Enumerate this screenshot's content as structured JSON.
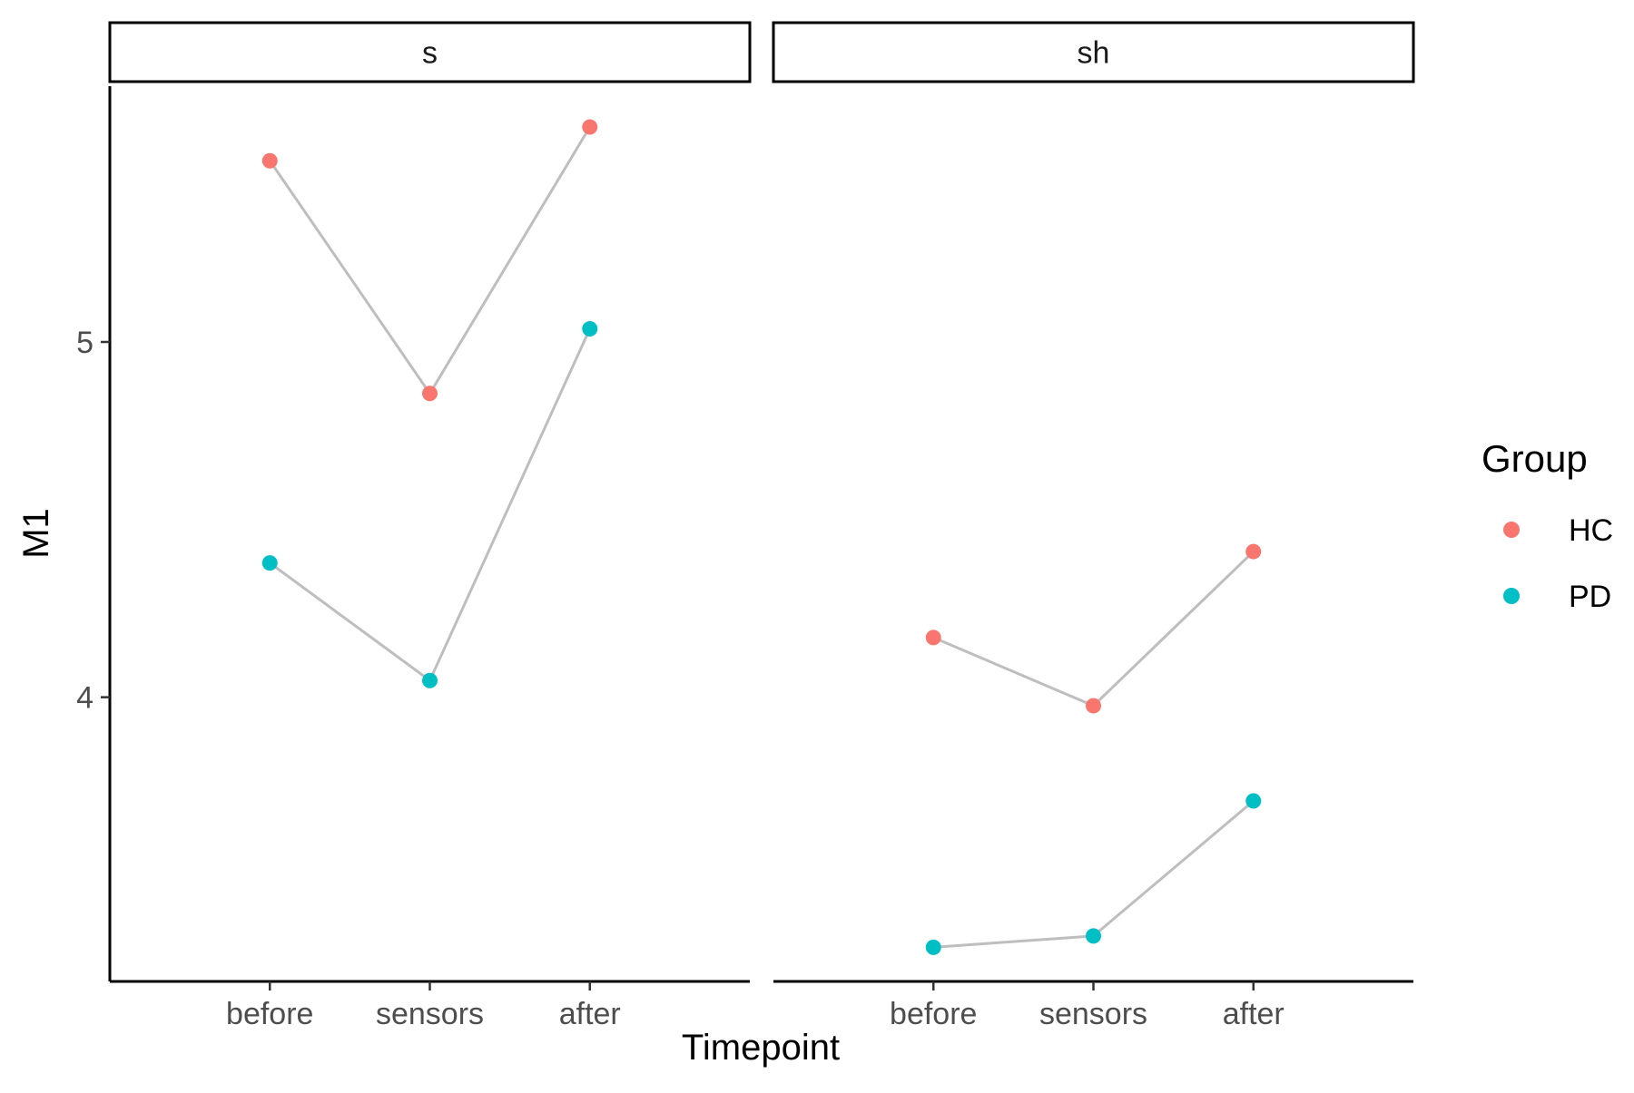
{
  "chart_data": {
    "type": "line",
    "xlabel": "Timepoint",
    "ylabel": "M1",
    "categories": [
      "before",
      "sensors",
      "after"
    ],
    "ylim": [
      3.2,
      5.72
    ],
    "yticks": [
      4,
      5
    ],
    "ytick_labels": [
      "4",
      "5"
    ],
    "grid": false,
    "legend": {
      "title": "Group",
      "placement": "right",
      "entries": [
        {
          "name": "HC",
          "color": "#F8766D"
        },
        {
          "name": "PD",
          "color": "#00BFC4"
        }
      ]
    },
    "connector_color": "#BEBEBE",
    "panels": [
      {
        "title": "s",
        "series": [
          {
            "name": "HC",
            "color": "#F8766D",
            "values": [
              5.51,
              4.855,
              5.605
            ]
          },
          {
            "name": "PD",
            "color": "#00BFC4",
            "values": [
              4.378,
              4.047,
              5.037
            ]
          }
        ]
      },
      {
        "title": "sh",
        "series": [
          {
            "name": "HC",
            "color": "#F8766D",
            "values": [
              4.168,
              3.976,
              4.41
            ]
          },
          {
            "name": "PD",
            "color": "#00BFC4",
            "values": [
              3.296,
              3.328,
              3.708
            ]
          }
        ]
      }
    ]
  }
}
